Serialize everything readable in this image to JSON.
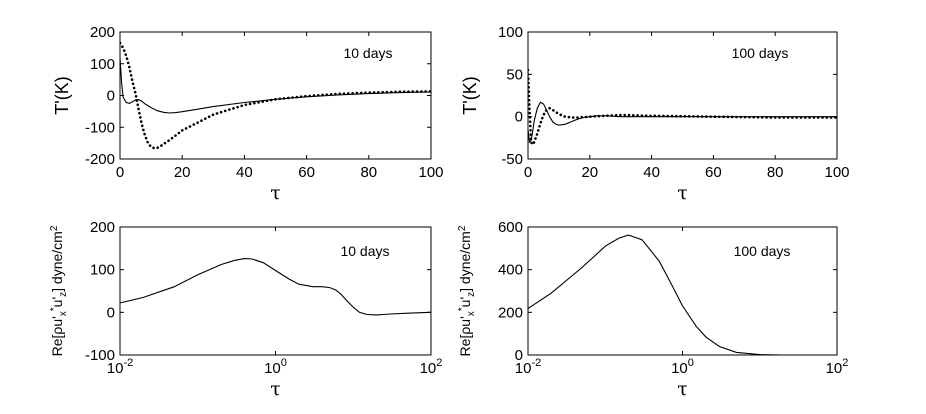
{
  "chart_data": [
    {
      "type": "line",
      "panel": "top-left",
      "annotation": "10 days",
      "xlabel": "τ",
      "ylabel": "T'(K)",
      "xscale": "linear",
      "xlim": [
        0,
        100
      ],
      "ylim": [
        -200,
        200
      ],
      "xticks": [
        "0",
        "20",
        "40",
        "60",
        "80",
        "100"
      ],
      "yticks": [
        "200",
        "100",
        "0",
        "-100",
        "-200"
      ],
      "series": [
        {
          "name": "solid",
          "style": "solid",
          "x": [
            0,
            0.5,
            1,
            2,
            3,
            4,
            5,
            6,
            7,
            8,
            10,
            12,
            14,
            16,
            18,
            20,
            25,
            30,
            40,
            50,
            60,
            70,
            80,
            90,
            100
          ],
          "y": [
            120,
            40,
            -5,
            -22,
            -25,
            -20,
            -14,
            -13,
            -18,
            -26,
            -38,
            -48,
            -53,
            -55,
            -54,
            -51,
            -43,
            -35,
            -22,
            -12,
            -4,
            2,
            6,
            9,
            11
          ]
        },
        {
          "name": "dotted",
          "style": "dotted",
          "x": [
            0,
            1,
            2,
            3,
            4,
            5,
            6,
            7,
            8,
            9,
            10,
            11,
            12,
            13,
            14,
            16,
            18,
            20,
            25,
            30,
            40,
            50,
            60,
            70,
            80,
            90,
            100
          ],
          "y": [
            165,
            150,
            125,
            90,
            45,
            5,
            -45,
            -90,
            -125,
            -150,
            -162,
            -166,
            -165,
            -160,
            -153,
            -140,
            -125,
            -110,
            -85,
            -60,
            -30,
            -12,
            -2,
            5,
            9,
            12,
            13
          ]
        }
      ]
    },
    {
      "type": "line",
      "panel": "top-right",
      "annotation": "100 days",
      "xlabel": "τ",
      "ylabel": "T'(K)",
      "xscale": "linear",
      "xlim": [
        0,
        100
      ],
      "ylim": [
        -50,
        100
      ],
      "xticks": [
        "0",
        "20",
        "40",
        "60",
        "80",
        "100"
      ],
      "yticks": [
        "100",
        "50",
        "0",
        "-50"
      ],
      "series": [
        {
          "name": "solid",
          "style": "solid",
          "x": [
            0,
            0.5,
            1,
            1.5,
            2,
            3,
            4,
            5,
            6,
            7,
            8,
            9,
            10,
            12,
            14,
            16,
            18,
            20,
            22,
            25,
            30,
            40,
            60,
            80,
            100
          ],
          "y": [
            -15,
            -30,
            -28,
            -18,
            -5,
            10,
            17,
            15,
            8,
            0,
            -6,
            -9,
            -10,
            -9,
            -6,
            -3,
            -1,
            0,
            1,
            1,
            0,
            0,
            0,
            0,
            0
          ]
        },
        {
          "name": "dotted",
          "style": "dotted",
          "x": [
            0,
            0.5,
            1,
            1.5,
            2,
            3,
            4,
            5,
            6,
            7,
            8,
            10,
            12,
            14,
            16,
            20,
            25,
            30,
            40,
            60,
            80,
            100
          ],
          "y": [
            55,
            10,
            -30,
            -33,
            -30,
            -20,
            -8,
            2,
            8,
            10,
            8,
            3,
            0,
            -1,
            -1,
            0,
            1,
            2,
            1,
            0,
            -1,
            -1
          ]
        }
      ]
    },
    {
      "type": "line",
      "panel": "bottom-left",
      "annotation": "10 days",
      "xlabel": "τ",
      "ylabel": "Re[ρu'x*u'z] dyne/cm2",
      "xscale": "log",
      "xlim": [
        0.01,
        100
      ],
      "ylim": [
        -100,
        200
      ],
      "xticks": [
        "10",
        "10",
        "10"
      ],
      "xtick_exponents": [
        "-2",
        "0",
        "2"
      ],
      "yticks": [
        "200",
        "100",
        "0",
        "-100"
      ],
      "series": [
        {
          "name": "solid",
          "style": "solid",
          "x": [
            0.01,
            0.02,
            0.05,
            0.1,
            0.2,
            0.3,
            0.4,
            0.5,
            0.7,
            1.0,
            1.5,
            2,
            3,
            4,
            5,
            6,
            7,
            8,
            10,
            12,
            15,
            20,
            30,
            50,
            100
          ],
          "y": [
            22,
            35,
            60,
            88,
            112,
            122,
            126,
            125,
            116,
            98,
            78,
            66,
            60,
            60,
            58,
            52,
            42,
            30,
            12,
            0,
            -5,
            -6,
            -4,
            -2,
            0
          ]
        }
      ]
    },
    {
      "type": "line",
      "panel": "bottom-right",
      "annotation": "100 days",
      "xlabel": "τ",
      "ylabel": "Re[ρu'x*u'z] dyne/cm2",
      "xscale": "log",
      "xlim": [
        0.01,
        100
      ],
      "ylim": [
        0,
        600
      ],
      "xticks": [
        "10",
        "10",
        "10"
      ],
      "xtick_exponents": [
        "-2",
        "0",
        "2"
      ],
      "yticks": [
        "600",
        "400",
        "200",
        "0"
      ],
      "series": [
        {
          "name": "solid",
          "style": "solid",
          "x": [
            0.01,
            0.02,
            0.05,
            0.1,
            0.15,
            0.2,
            0.3,
            0.5,
            0.7,
            1.0,
            1.5,
            2,
            3,
            5,
            10,
            20,
            50,
            100
          ],
          "y": [
            218,
            290,
            410,
            510,
            548,
            562,
            540,
            440,
            340,
            230,
            135,
            85,
            40,
            12,
            2,
            0,
            0,
            0
          ]
        }
      ]
    }
  ]
}
